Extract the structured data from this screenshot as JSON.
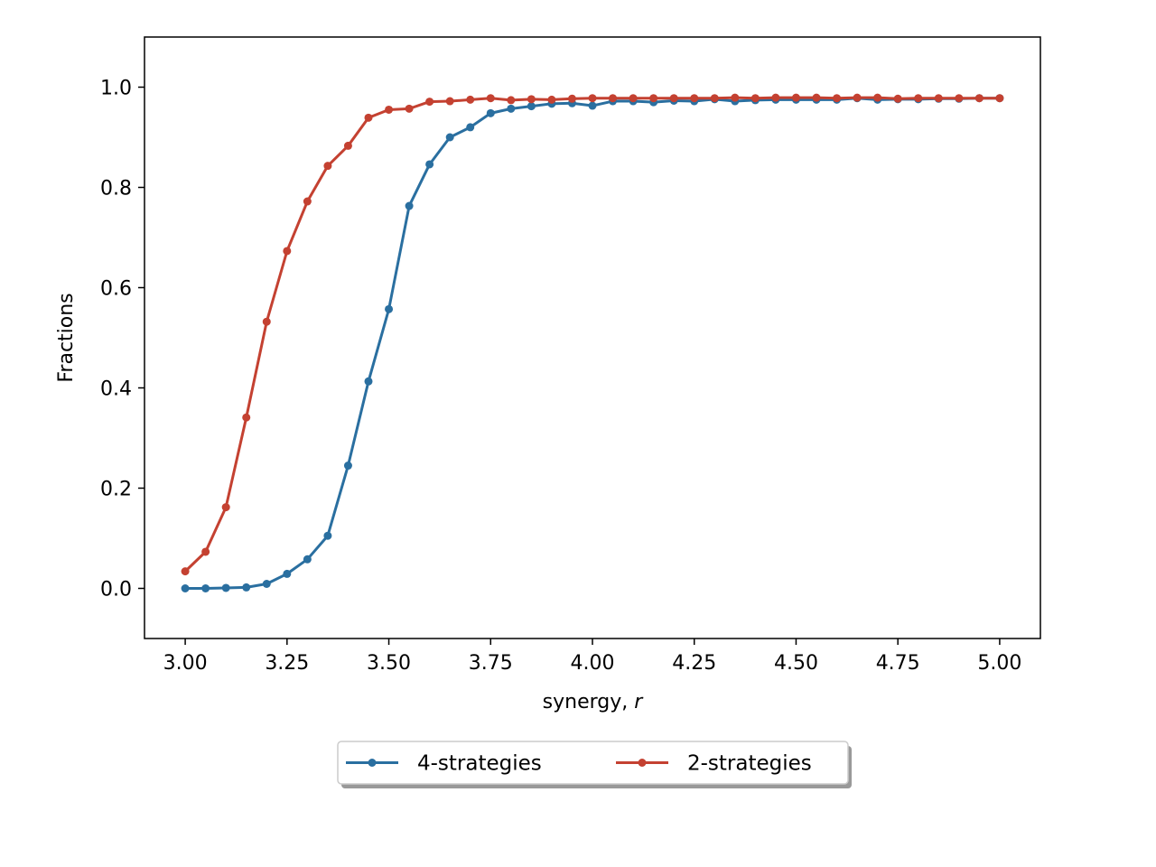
{
  "chart_data": {
    "type": "line",
    "title": "",
    "xlabel": "synergy, ",
    "xlabel_italic": "r",
    "ylabel": "Fractions",
    "xlim": [
      2.9,
      5.1
    ],
    "ylim": [
      -0.1,
      1.1
    ],
    "x_ticks": [
      3.0,
      3.25,
      3.5,
      3.75,
      4.0,
      4.25,
      4.5,
      4.75,
      5.0
    ],
    "x_tick_labels": [
      "3.00",
      "3.25",
      "3.50",
      "3.75",
      "4.00",
      "4.25",
      "4.50",
      "4.75",
      "5.00"
    ],
    "y_ticks": [
      0.0,
      0.2,
      0.4,
      0.6,
      0.8,
      1.0
    ],
    "y_tick_labels": [
      "0.0",
      "0.2",
      "0.4",
      "0.6",
      "0.8",
      "1.0"
    ],
    "grid": false,
    "legend_placement": "bottom-center",
    "x": [
      3.0,
      3.05,
      3.1,
      3.15,
      3.2,
      3.25,
      3.3,
      3.35,
      3.4,
      3.45,
      3.5,
      3.55,
      3.6,
      3.65,
      3.7,
      3.75,
      3.8,
      3.85,
      3.9,
      3.95,
      4.0,
      4.05,
      4.1,
      4.15,
      4.2,
      4.25,
      4.3,
      4.35,
      4.4,
      4.45,
      4.5,
      4.55,
      4.6,
      4.65,
      4.7,
      4.75,
      4.8,
      4.85,
      4.9,
      4.95,
      5.0
    ],
    "series": [
      {
        "name": "4-strategies",
        "color": "#2a6fa0",
        "values": [
          0.0,
          0.0,
          0.001,
          0.002,
          0.009,
          0.029,
          0.058,
          0.105,
          0.245,
          0.413,
          0.557,
          0.763,
          0.846,
          0.9,
          0.92,
          0.948,
          0.957,
          0.962,
          0.967,
          0.968,
          0.963,
          0.972,
          0.972,
          0.97,
          0.973,
          0.972,
          0.976,
          0.972,
          0.974,
          0.975,
          0.975,
          0.975,
          0.975,
          0.978,
          0.975,
          0.976,
          0.976,
          0.977,
          0.977,
          0.978,
          0.978
        ]
      },
      {
        "name": "2-strategies",
        "color": "#c44131",
        "values": [
          0.034,
          0.073,
          0.162,
          0.341,
          0.532,
          0.673,
          0.772,
          0.843,
          0.883,
          0.939,
          0.955,
          0.957,
          0.971,
          0.972,
          0.975,
          0.978,
          0.974,
          0.976,
          0.975,
          0.977,
          0.978,
          0.978,
          0.978,
          0.978,
          0.978,
          0.978,
          0.978,
          0.979,
          0.978,
          0.979,
          0.979,
          0.979,
          0.978,
          0.979,
          0.979,
          0.977,
          0.978,
          0.978,
          0.978,
          0.978,
          0.978
        ]
      }
    ]
  }
}
